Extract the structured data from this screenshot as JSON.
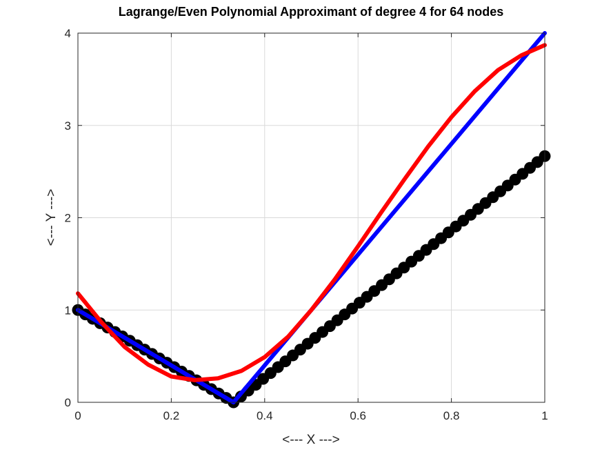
{
  "chart_data": {
    "type": "line",
    "title": "Lagrange/Even Polynomial Approximant of degree 4 for 64 nodes",
    "xlabel": "<--- X --->",
    "ylabel": "<--- Y --->",
    "xlim": [
      0,
      1
    ],
    "ylim": [
      0,
      4
    ],
    "xticks": [
      0,
      0.2,
      0.4,
      0.6,
      0.8,
      1
    ],
    "yticks": [
      0,
      1,
      2,
      3,
      4
    ],
    "xtick_labels": [
      "0",
      "0.2",
      "0.4",
      "0.6",
      "0.8",
      "1"
    ],
    "ytick_labels": [
      "0",
      "1",
      "2",
      "3",
      "4"
    ],
    "grid": true,
    "series": [
      {
        "role": "nodes",
        "style": "markers",
        "color": "#000000",
        "x": [
          0.0,
          0.0159,
          0.0317,
          0.0476,
          0.0635,
          0.0794,
          0.0952,
          0.1111,
          0.127,
          0.1429,
          0.1587,
          0.1746,
          0.1905,
          0.2063,
          0.2222,
          0.2381,
          0.254,
          0.2698,
          0.2857,
          0.3016,
          0.3175,
          0.3333,
          0.3492,
          0.3651,
          0.381,
          0.3968,
          0.4127,
          0.4286,
          0.4444,
          0.4603,
          0.4762,
          0.4921,
          0.5079,
          0.5238,
          0.5397,
          0.5556,
          0.5714,
          0.5873,
          0.6032,
          0.619,
          0.6349,
          0.6508,
          0.6667,
          0.6825,
          0.6984,
          0.7143,
          0.7302,
          0.746,
          0.7619,
          0.7778,
          0.7937,
          0.8095,
          0.8254,
          0.8413,
          0.8571,
          0.873,
          0.8889,
          0.9048,
          0.9206,
          0.9365,
          0.9524,
          0.9683,
          0.9841,
          1.0
        ],
        "y": [
          1.0,
          0.952,
          0.905,
          0.857,
          0.81,
          0.762,
          0.714,
          0.667,
          0.619,
          0.571,
          0.524,
          0.476,
          0.429,
          0.381,
          0.333,
          0.286,
          0.238,
          0.19,
          0.143,
          0.095,
          0.048,
          0.0,
          0.063,
          0.127,
          0.19,
          0.254,
          0.317,
          0.381,
          0.444,
          0.508,
          0.571,
          0.635,
          0.698,
          0.762,
          0.825,
          0.889,
          0.952,
          1.016,
          1.079,
          1.143,
          1.206,
          1.27,
          1.333,
          1.397,
          1.46,
          1.524,
          1.587,
          1.651,
          1.714,
          1.778,
          1.841,
          1.905,
          1.968,
          2.032,
          2.095,
          2.159,
          2.222,
          2.286,
          2.349,
          2.413,
          2.476,
          2.54,
          2.603,
          2.667
        ]
      },
      {
        "role": "function",
        "style": "line",
        "color": "#0000ff",
        "x": [
          0,
          0.3333,
          1
        ],
        "y": [
          1,
          0,
          4
        ]
      },
      {
        "role": "approximant",
        "style": "line",
        "color": "#ff0000",
        "x": [
          0,
          0.05,
          0.1,
          0.15,
          0.2,
          0.25,
          0.3,
          0.35,
          0.4,
          0.45,
          0.5,
          0.55,
          0.6,
          0.65,
          0.7,
          0.75,
          0.8,
          0.85,
          0.9,
          0.95,
          1.0
        ],
        "y": [
          1.18,
          0.87,
          0.6,
          0.41,
          0.28,
          0.24,
          0.26,
          0.34,
          0.49,
          0.71,
          1.0,
          1.33,
          1.69,
          2.06,
          2.42,
          2.77,
          3.09,
          3.37,
          3.6,
          3.76,
          3.87
        ]
      }
    ]
  }
}
